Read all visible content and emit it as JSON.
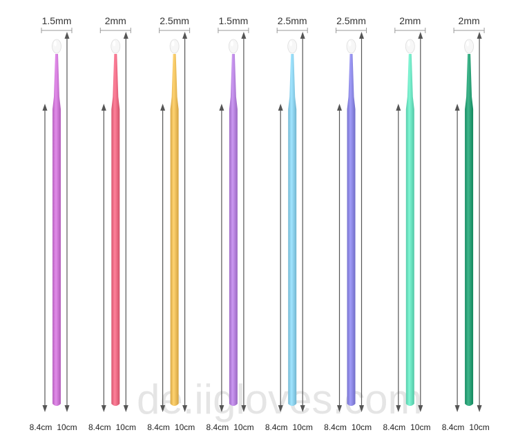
{
  "brushes": [
    {
      "tip_size": "1.5mm",
      "short_length": "8.4cm",
      "long_length": "10cm",
      "color": "#d07ad8"
    },
    {
      "tip_size": "2mm",
      "short_length": "8.4cm",
      "long_length": "10cm",
      "color": "#ef6f88"
    },
    {
      "tip_size": "2.5mm",
      "short_length": "8.4cm",
      "long_length": "10cm",
      "color": "#f1c15f"
    },
    {
      "tip_size": "1.5mm",
      "short_length": "8.4cm",
      "long_length": "10cm",
      "color": "#b986e0"
    },
    {
      "tip_size": "2.5mm",
      "short_length": "8.4cm",
      "long_length": "10cm",
      "color": "#8fd3ee"
    },
    {
      "tip_size": "2.5mm",
      "short_length": "8.4cm",
      "long_length": "10cm",
      "color": "#8f8be6"
    },
    {
      "tip_size": "2mm",
      "short_length": "8.4cm",
      "long_length": "10cm",
      "color": "#6fe5c3"
    },
    {
      "tip_size": "2mm",
      "short_length": "8.4cm",
      "long_length": "10cm",
      "color": "#2ea47a"
    }
  ],
  "watermark": "de.iigloves.com",
  "colors": {
    "dimension_line": "#555555",
    "tip_fiber": "#f7f7f7"
  }
}
